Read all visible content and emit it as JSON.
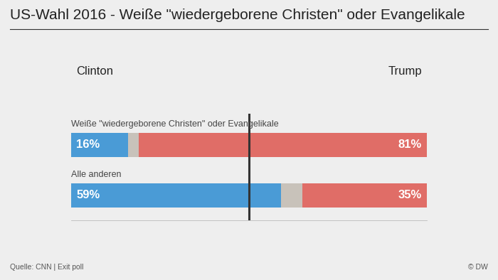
{
  "chart_data": {
    "type": "bar",
    "orientation": "horizontal",
    "stacked": true,
    "title": "US-Wahl 2016 - Weiße \"wiedergeborene Christen\" oder Evangelikale",
    "categories": [
      "Weiße \"wiedergeborene Christen\" oder Evangelikale",
      "Alle anderen"
    ],
    "series": [
      {
        "name": "Clinton",
        "color": "#4a9bd6",
        "values": [
          16,
          59
        ],
        "value_labels": [
          "16%",
          "59%"
        ]
      },
      {
        "color": "#c8c2ba",
        "values": [
          3,
          6
        ]
      },
      {
        "name": "Trump",
        "color": "#e06d67",
        "values": [
          81,
          35
        ],
        "value_labels": [
          "81%",
          "35%"
        ]
      }
    ],
    "xlim": [
      0,
      100
    ],
    "xticks": [
      50
    ],
    "grid": true,
    "tick_labels": false,
    "data_labels": true,
    "source": "Quelle: CNN | Exit poll",
    "credit": "© DW"
  }
}
